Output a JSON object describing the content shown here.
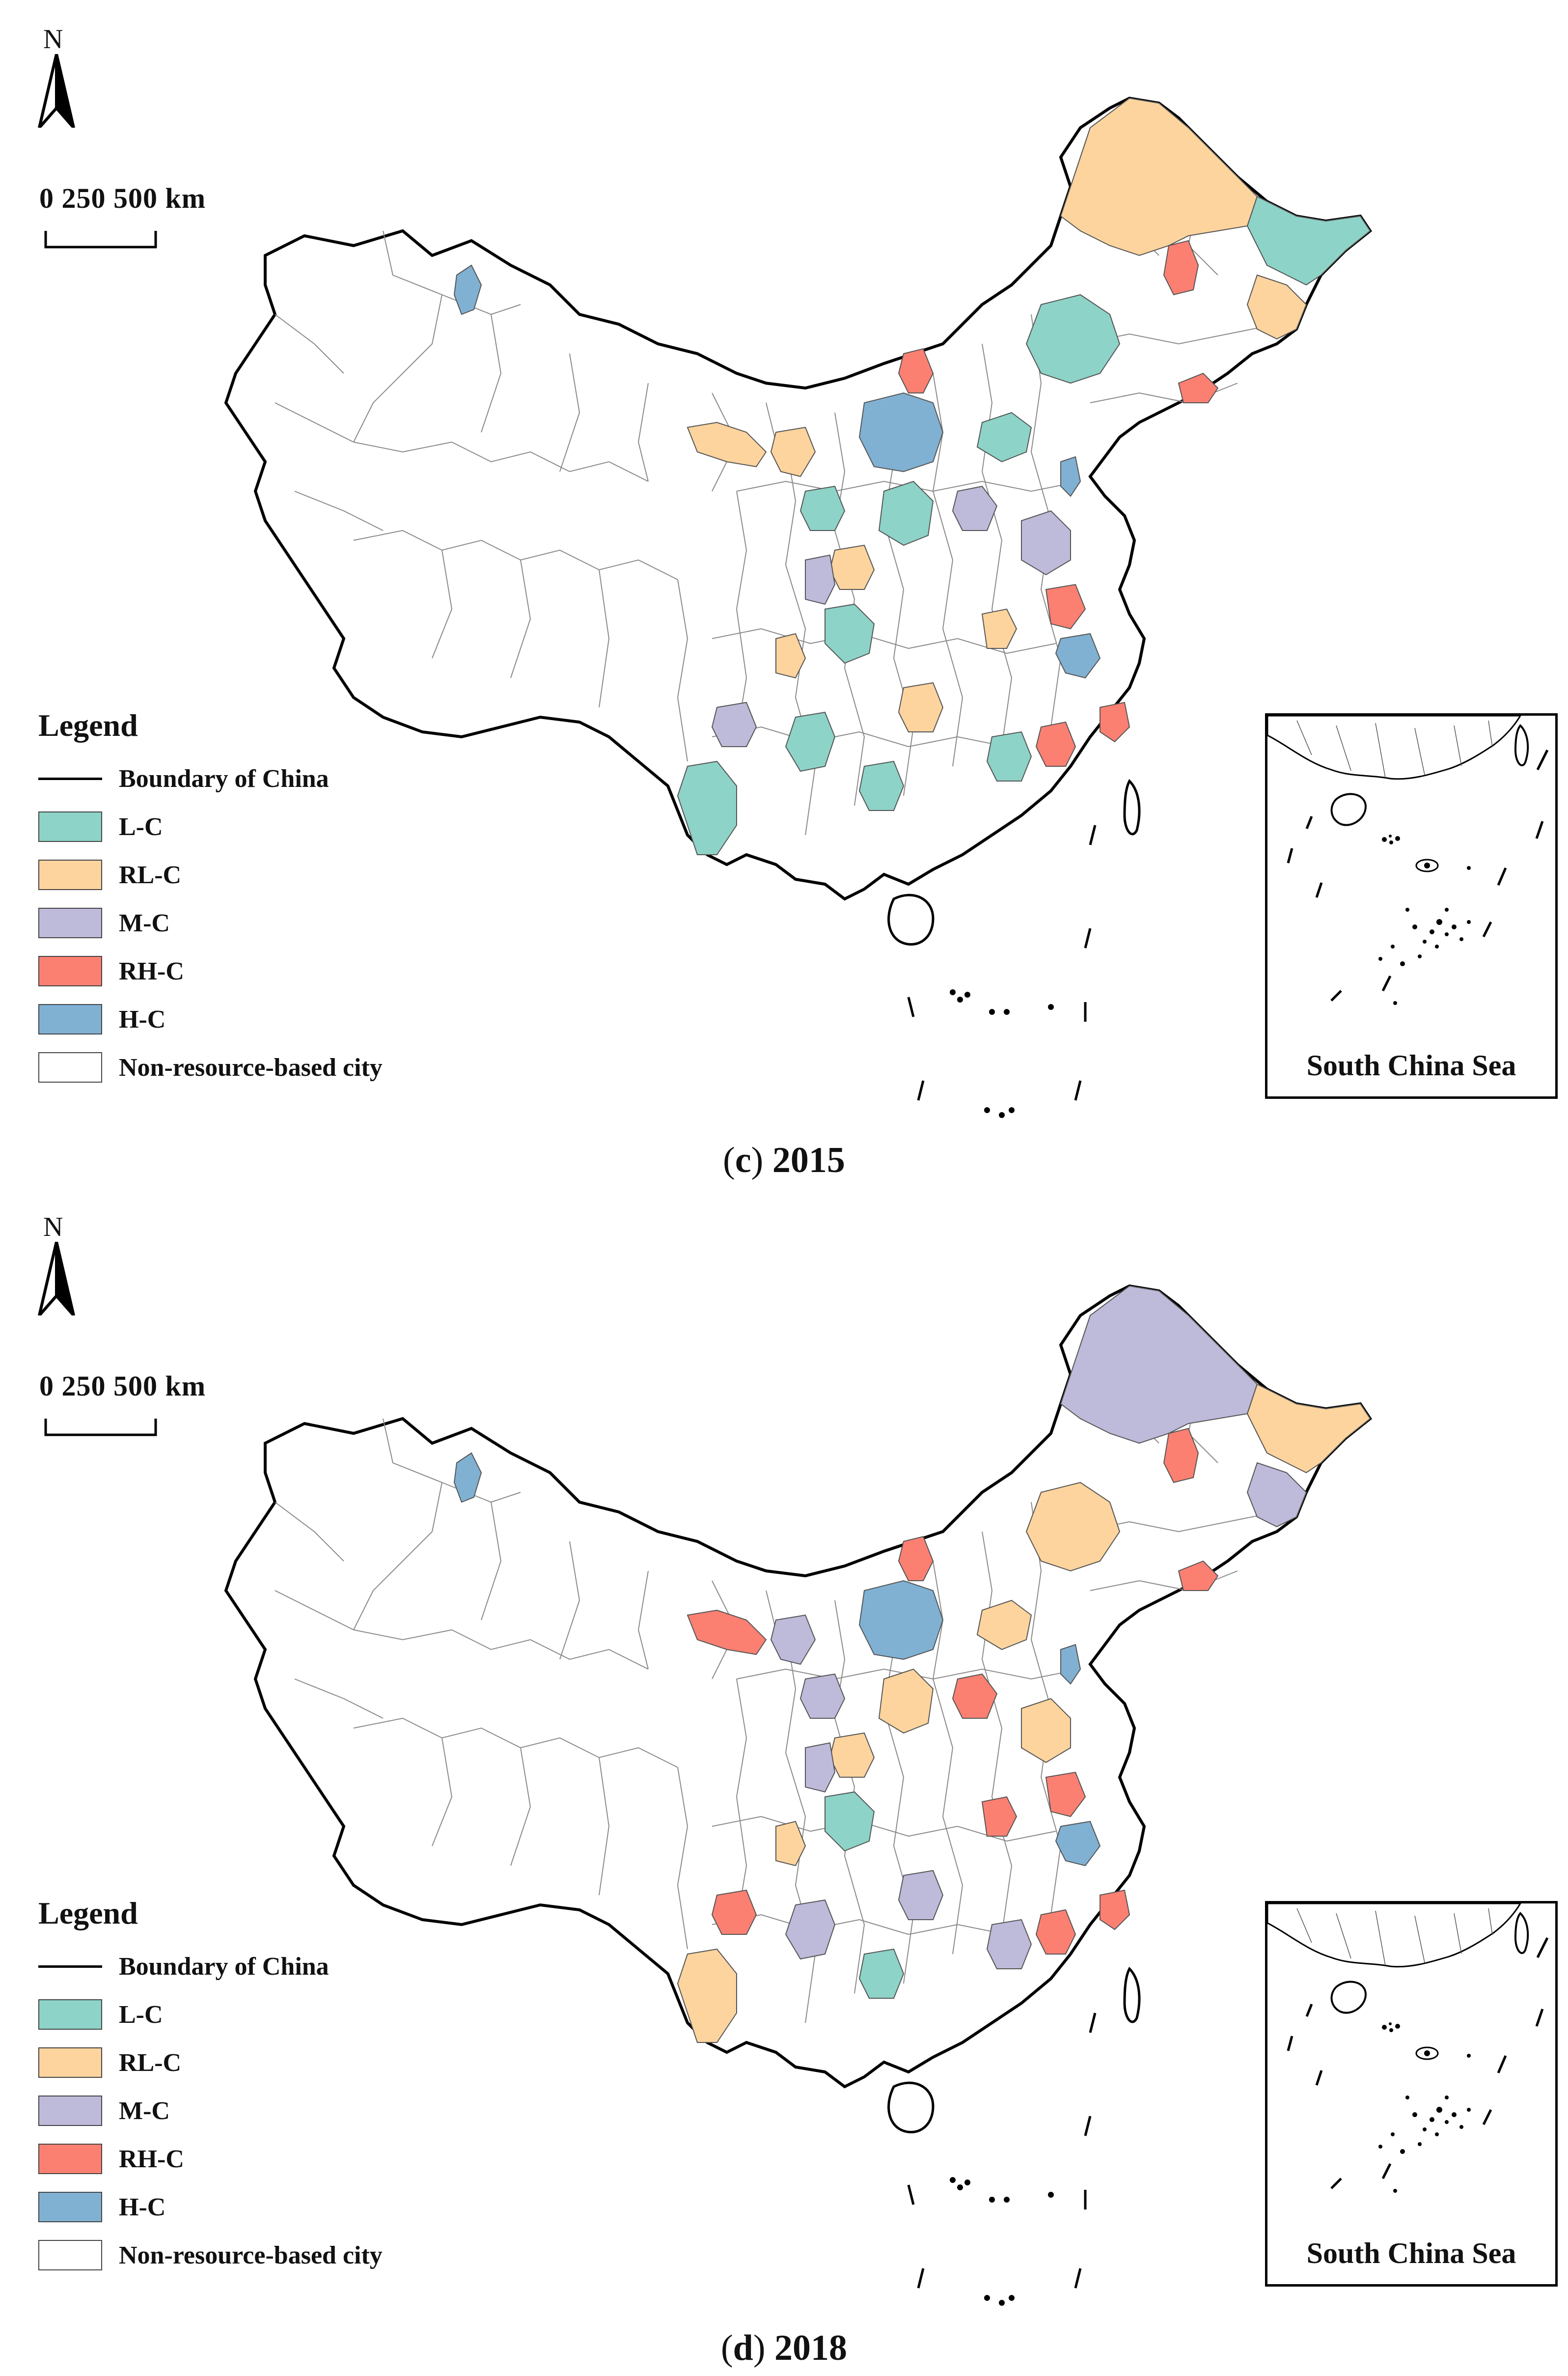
{
  "figure": {
    "north_label": "N",
    "scale": {
      "text": "0   250 500  km"
    },
    "legend": {
      "title": "Legend",
      "boundary_label": "Boundary of China",
      "items": [
        {
          "key": "lc",
          "label": "L-C",
          "color": "#8dd3c7"
        },
        {
          "key": "rlc",
          "label": "RL-C",
          "color": "#fdd49e"
        },
        {
          "key": "mc",
          "label": "M-C",
          "color": "#bebada"
        },
        {
          "key": "rhc",
          "label": "RH-C",
          "color": "#fb8072"
        },
        {
          "key": "hc",
          "label": "H-C",
          "color": "#80b1d3"
        },
        {
          "key": "non",
          "label": "Non-resource-based city",
          "color": "#ffffff"
        }
      ]
    },
    "inset_label": "South China Sea"
  },
  "panels": [
    {
      "id": "c",
      "letter": "c",
      "year": "2015",
      "regions": [
        {
          "name": "heilongjiang-north",
          "cls": "rlc"
        },
        {
          "name": "heilongjiang-east",
          "cls": "lc"
        },
        {
          "name": "heilongjiang-mid",
          "cls": "rhc"
        },
        {
          "name": "jilin-east",
          "cls": "rlc"
        },
        {
          "name": "liaoning-coast",
          "cls": "rhc"
        },
        {
          "name": "inner-mongolia-center",
          "cls": "lc"
        },
        {
          "name": "inner-mongolia-hc",
          "cls": "hc"
        },
        {
          "name": "inner-mongolia-north",
          "cls": "rhc"
        },
        {
          "name": "hebei-north",
          "cls": "lc"
        },
        {
          "name": "shanxi-central",
          "cls": "lc"
        },
        {
          "name": "shanxi-south",
          "cls": "mc"
        },
        {
          "name": "ningxia",
          "cls": "rlc"
        },
        {
          "name": "gansu-west",
          "cls": "rlc"
        },
        {
          "name": "gansu-mid",
          "cls": "lc"
        },
        {
          "name": "shaanxi-north",
          "cls": "rlc"
        },
        {
          "name": "henan-north",
          "cls": "mc"
        },
        {
          "name": "shandong-west",
          "cls": "rhc"
        },
        {
          "name": "shandong-coast",
          "cls": "hc"
        },
        {
          "name": "jiangsu",
          "cls": "rhc"
        },
        {
          "name": "anhui",
          "cls": "hc"
        },
        {
          "name": "sichuan-east",
          "cls": "mc"
        },
        {
          "name": "sichuan-center",
          "cls": "lc"
        },
        {
          "name": "guizhou",
          "cls": "lc"
        },
        {
          "name": "guangxi",
          "cls": "lc"
        },
        {
          "name": "hunan",
          "cls": "rlc"
        },
        {
          "name": "jiangxi",
          "cls": "lc"
        },
        {
          "name": "fujian",
          "cls": "rhc"
        },
        {
          "name": "yunnan-south",
          "cls": "lc"
        },
        {
          "name": "yunnan-west",
          "cls": "mc"
        },
        {
          "name": "xinjiang-north",
          "cls": "hc"
        },
        {
          "name": "hubei",
          "cls": "rlc"
        },
        {
          "name": "chongqing",
          "cls": "rlc"
        }
      ]
    },
    {
      "id": "d",
      "letter": "d",
      "year": "2018",
      "regions": [
        {
          "name": "heilongjiang-north",
          "cls": "mc"
        },
        {
          "name": "heilongjiang-east",
          "cls": "rlc"
        },
        {
          "name": "heilongjiang-mid",
          "cls": "rhc"
        },
        {
          "name": "jilin-east",
          "cls": "mc"
        },
        {
          "name": "liaoning-coast",
          "cls": "rhc"
        },
        {
          "name": "inner-mongolia-center",
          "cls": "rlc"
        },
        {
          "name": "inner-mongolia-hc",
          "cls": "hc"
        },
        {
          "name": "inner-mongolia-north",
          "cls": "rhc"
        },
        {
          "name": "hebei-north",
          "cls": "rlc"
        },
        {
          "name": "shanxi-central",
          "cls": "rlc"
        },
        {
          "name": "shanxi-south",
          "cls": "rhc"
        },
        {
          "name": "ningxia",
          "cls": "mc"
        },
        {
          "name": "gansu-west",
          "cls": "rhc"
        },
        {
          "name": "gansu-mid",
          "cls": "mc"
        },
        {
          "name": "shaanxi-north",
          "cls": "rlc"
        },
        {
          "name": "henan-north",
          "cls": "rlc"
        },
        {
          "name": "shandong-west",
          "cls": "rhc"
        },
        {
          "name": "shandong-coast",
          "cls": "hc"
        },
        {
          "name": "jiangsu",
          "cls": "rhc"
        },
        {
          "name": "anhui",
          "cls": "hc"
        },
        {
          "name": "sichuan-east",
          "cls": "mc"
        },
        {
          "name": "sichuan-center",
          "cls": "lc"
        },
        {
          "name": "guizhou",
          "cls": "mc"
        },
        {
          "name": "guangxi",
          "cls": "lc"
        },
        {
          "name": "hunan",
          "cls": "mc"
        },
        {
          "name": "jiangxi",
          "cls": "mc"
        },
        {
          "name": "fujian",
          "cls": "rhc"
        },
        {
          "name": "yunnan-south",
          "cls": "rlc"
        },
        {
          "name": "yunnan-west",
          "cls": "rhc"
        },
        {
          "name": "xinjiang-north",
          "cls": "hc"
        },
        {
          "name": "hubei",
          "cls": "rhc"
        },
        {
          "name": "chongqing",
          "cls": "rlc"
        }
      ]
    }
  ]
}
